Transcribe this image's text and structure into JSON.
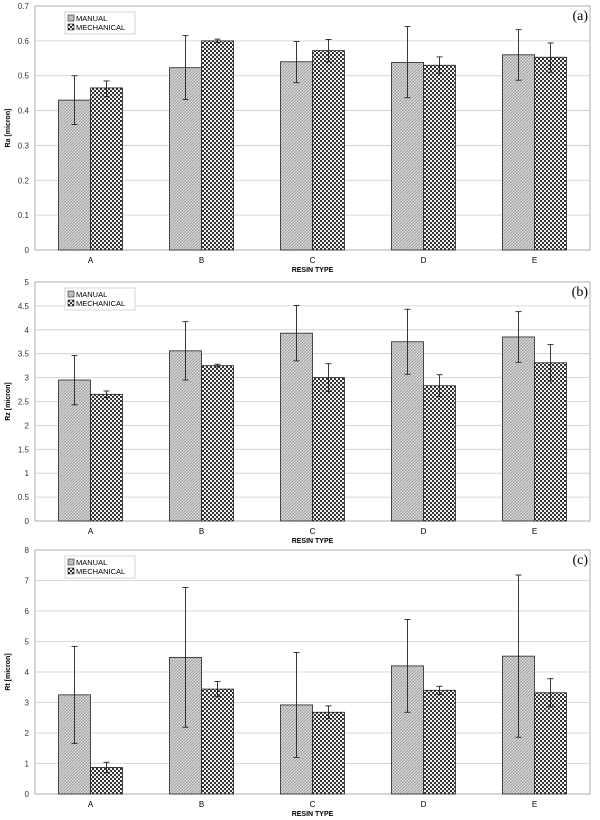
{
  "chart_data": [
    {
      "type": "bar",
      "panel_label": "(a)",
      "xlabel": "RESIN TYPE",
      "ylabel": "Ra [micron]",
      "ylim": [
        0,
        0.7
      ],
      "ytick_step": 0.1,
      "grid": true,
      "legend": "top-left",
      "categories": [
        "A",
        "B",
        "C",
        "D",
        "E"
      ],
      "series": [
        {
          "name": "MANUAL",
          "values": [
            0.43,
            0.523,
            0.54,
            0.538,
            0.56
          ],
          "err_low": [
            0.36,
            0.432,
            0.48,
            0.437,
            0.487
          ],
          "err_high": [
            0.5,
            0.615,
            0.598,
            0.641,
            0.632
          ]
        },
        {
          "name": "MECHANICAL",
          "values": [
            0.465,
            0.6,
            0.572,
            0.53,
            0.553
          ],
          "err_low": [
            0.44,
            0.595,
            0.54,
            0.507,
            0.51
          ],
          "err_high": [
            0.485,
            0.605,
            0.604,
            0.554,
            0.594
          ]
        }
      ]
    },
    {
      "type": "bar",
      "panel_label": "(b)",
      "xlabel": "RESIN TYPE",
      "ylabel": "Rz [micron]",
      "ylim": [
        0,
        5
      ],
      "ytick_step": 0.5,
      "grid": true,
      "legend": "top-left",
      "categories": [
        "A",
        "B",
        "C",
        "D",
        "E"
      ],
      "series": [
        {
          "name": "MANUAL",
          "values": [
            2.95,
            3.56,
            3.93,
            3.75,
            3.85
          ],
          "err_low": [
            2.43,
            2.95,
            3.35,
            3.07,
            3.32
          ],
          "err_high": [
            3.46,
            4.17,
            4.51,
            4.43,
            4.38
          ]
        },
        {
          "name": "MECHANICAL",
          "values": [
            2.65,
            3.25,
            3.0,
            2.83,
            3.31
          ],
          "err_low": [
            2.58,
            3.22,
            2.71,
            2.6,
            2.93
          ],
          "err_high": [
            2.72,
            3.28,
            3.29,
            3.06,
            3.69
          ]
        }
      ]
    },
    {
      "type": "bar",
      "panel_label": "(c)",
      "xlabel": "RESIN TYPE",
      "ylabel": "Rt [micron]",
      "ylim": [
        0,
        8
      ],
      "ytick_step": 1,
      "grid": true,
      "legend": "top-left",
      "categories": [
        "A",
        "B",
        "C",
        "D",
        "E"
      ],
      "series": [
        {
          "name": "MANUAL",
          "values": [
            3.25,
            4.48,
            2.92,
            4.2,
            4.52
          ],
          "err_low": [
            1.66,
            2.19,
            1.2,
            2.68,
            1.86
          ],
          "err_high": [
            4.84,
            6.77,
            4.64,
            5.72,
            7.18
          ]
        },
        {
          "name": "MECHANICAL",
          "values": [
            0.87,
            3.44,
            2.68,
            3.4,
            3.32
          ],
          "err_low": [
            0.7,
            3.19,
            2.47,
            3.27,
            2.86
          ],
          "err_high": [
            1.04,
            3.69,
            2.89,
            3.53,
            3.78
          ]
        }
      ]
    }
  ]
}
